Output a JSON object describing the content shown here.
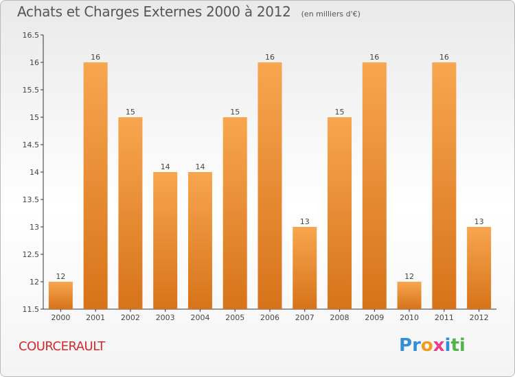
{
  "title": "Achats et Charges Externes 2000 à 2012",
  "unit": "(en milliers d'€)",
  "city": "COURCERAULT",
  "logo": {
    "letters": [
      "P",
      "r",
      "o",
      "x",
      "i",
      "t",
      "i"
    ],
    "colors": [
      "#2f8fd8",
      "#2f8fd8",
      "#f39a1b",
      "#e83d8a",
      "#2f8fd8",
      "#53b548",
      "#53b548"
    ]
  },
  "colors": {
    "bar_light": "#f7a64f",
    "bar_dark": "#d7731a",
    "city": "#d02a2a"
  },
  "chart_data": {
    "type": "bar",
    "categories": [
      "2000",
      "2001",
      "2002",
      "2003",
      "2004",
      "2005",
      "2006",
      "2007",
      "2008",
      "2009",
      "2010",
      "2011",
      "2012"
    ],
    "values": [
      12,
      16,
      15,
      14,
      14,
      15,
      16,
      13,
      15,
      16,
      12,
      16,
      13
    ],
    "ylim": [
      11.5,
      16.5
    ],
    "yticks": [
      "11.5",
      "12",
      "12.5",
      "13",
      "13.5",
      "14",
      "14.5",
      "15",
      "15.5",
      "16",
      "16.5"
    ],
    "grid": false
  }
}
